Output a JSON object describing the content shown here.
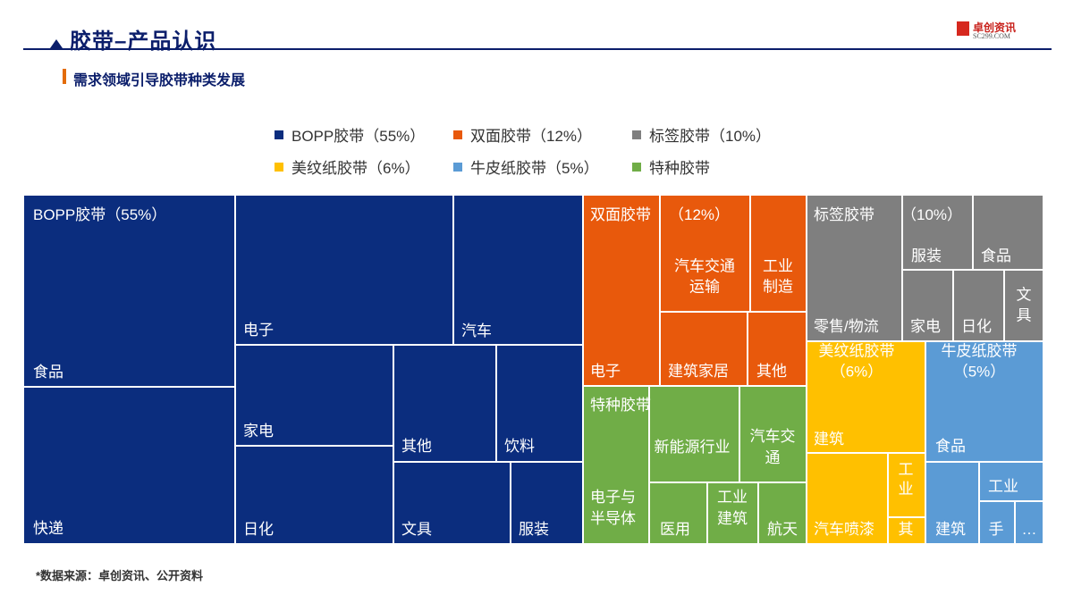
{
  "header": {
    "title": "胶带–产品认识",
    "subtitle": "需求领域引导胶带种类发展",
    "logo_text": "卓创资讯",
    "logo_sub": "SC299.COM"
  },
  "footer": {
    "source": "*数据来源：卓创资讯、公开资料"
  },
  "chart_data": {
    "type": "treemap",
    "legend": [
      {
        "name": "BOPP胶带（55%）",
        "color": "#0b2d7e"
      },
      {
        "name": "双面胶带（12%）",
        "color": "#e8590c"
      },
      {
        "name": "标签胶带（10%）",
        "color": "#7f7f7f"
      },
      {
        "name": "美纹纸胶带（6%）",
        "color": "#ffc000"
      },
      {
        "name": "牛皮纸胶带（5%）",
        "color": "#5b9bd5"
      },
      {
        "name": "特种胶带",
        "color": "#70ad47"
      }
    ],
    "groups": [
      {
        "name": "BOPP胶带",
        "label": "BOPP胶带（55%）",
        "share": 55,
        "color": "#0b2d7e",
        "items": [
          "食品",
          "快递",
          "电子",
          "汽车",
          "家电",
          "其他",
          "饮料",
          "日化",
          "文具",
          "服装"
        ]
      },
      {
        "name": "双面胶带",
        "label": "双面胶带（12%）",
        "share": 12,
        "color": "#e8590c",
        "items": [
          "电子",
          "汽车交通运输",
          "工业制造",
          "建筑家居",
          "其他"
        ]
      },
      {
        "name": "标签胶带",
        "label": "标签胶带（10%）",
        "share": 10,
        "color": "#7f7f7f",
        "items": [
          "零售/物流",
          "服装",
          "食品",
          "家电",
          "日化",
          "文具"
        ]
      },
      {
        "name": "美纹纸胶带",
        "label": "美纹纸胶带（6%）",
        "share": 6,
        "color": "#ffc000",
        "items": [
          "建筑",
          "汽车喷漆",
          "工业",
          "其"
        ]
      },
      {
        "name": "牛皮纸胶带",
        "label": "牛皮纸胶带（5%）",
        "share": 5,
        "color": "#5b9bd5",
        "items": [
          "食品",
          "建筑",
          "工业",
          "手",
          "…"
        ]
      },
      {
        "name": "特种胶带",
        "label": "特种胶带",
        "share": null,
        "color": "#70ad47",
        "items": [
          "电子与半导体",
          "新能源行业",
          "汽车交通",
          "医用",
          "工业建筑",
          "航天"
        ]
      }
    ]
  }
}
